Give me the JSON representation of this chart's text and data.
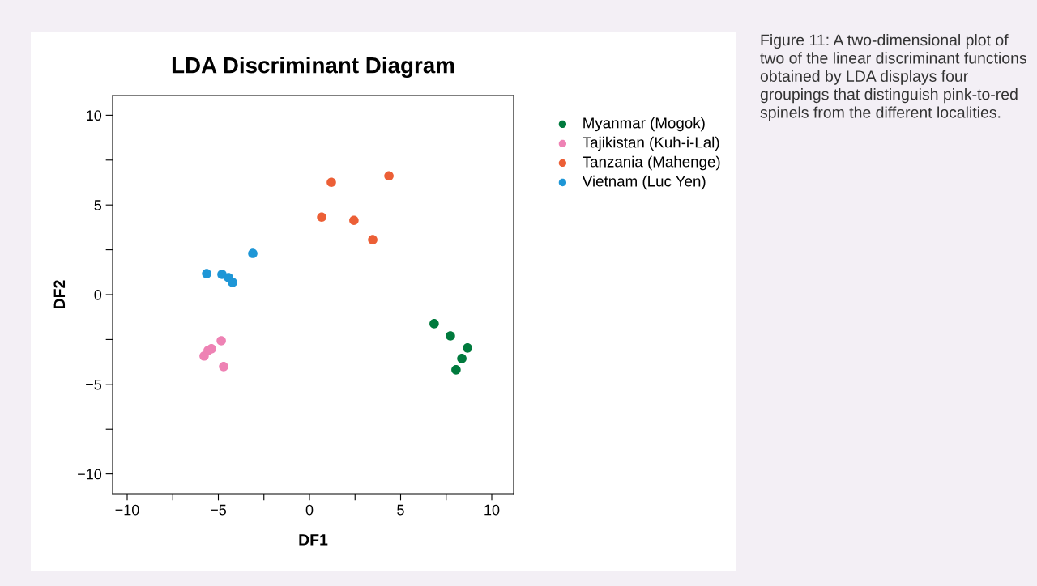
{
  "chart_data": {
    "type": "scatter",
    "title": "LDA Discriminant Diagram",
    "xlabel": "DF1",
    "ylabel": "DF2",
    "xlim": [
      -10.8,
      11.2
    ],
    "ylim": [
      -11.1,
      11.1
    ],
    "xticks": [
      {
        "value": -10,
        "label": "−10"
      },
      {
        "value": -7.5,
        "label": null
      },
      {
        "value": -5,
        "label": "−5"
      },
      {
        "value": -2.5,
        "label": null
      },
      0,
      {
        "value": 2.5,
        "label": null
      },
      5,
      {
        "value": 7.5,
        "label": null
      },
      10
    ],
    "yticks": [
      {
        "value": -10,
        "label": "−10"
      },
      {
        "value": -7.5,
        "label": null
      },
      {
        "value": -5,
        "label": "−5"
      },
      {
        "value": -2.5,
        "label": null
      },
      0,
      {
        "value": 2.5,
        "label": null
      },
      5,
      {
        "value": 7.5,
        "label": null
      },
      10
    ],
    "grid": false,
    "legend": "right",
    "marker": "circle",
    "series": [
      {
        "name": "Myanmar (Mogok)",
        "color": "#007a3d",
        "x": [
          6.84,
          7.73,
          8.67,
          8.36,
          8.04
        ],
        "values": [
          -1.62,
          -2.3,
          -2.97,
          -3.56,
          -4.19
        ]
      },
      {
        "name": "Tajikistan (Kuh-i-Lal)",
        "color": "#ee82b4",
        "x": [
          -4.84,
          -5.38,
          -5.56,
          -5.78,
          -4.71
        ],
        "values": [
          -2.57,
          -3.02,
          -3.11,
          -3.42,
          -4.01
        ]
      },
      {
        "name": "Tanzania (Mahenge)",
        "color": "#ec5f36",
        "x": [
          1.2,
          4.36,
          0.67,
          2.44,
          3.47
        ],
        "values": [
          6.26,
          6.62,
          4.32,
          4.14,
          3.06
        ]
      },
      {
        "name": "Vietnam (Luc Yen)",
        "color": "#1e96d6",
        "x": [
          -3.11,
          -5.64,
          -4.8,
          -4.44,
          -4.22
        ],
        "values": [
          2.3,
          1.17,
          1.13,
          0.95,
          0.68
        ]
      }
    ],
    "annotations": [
      "Figure 11: A two-dimensional plot of two of the linear discriminant functions obtained by LDA displays four groupings that distinguish pink-to-red spinels from the different localities."
    ]
  }
}
